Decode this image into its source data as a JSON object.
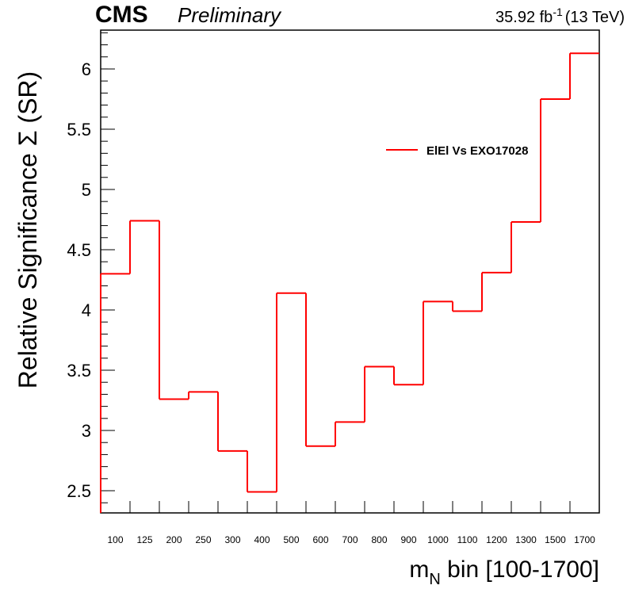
{
  "chart_data": {
    "type": "step",
    "experiment": "CMS",
    "status": "Preliminary",
    "lumi": "35.92 fb",
    "lumi_exponent": "-1",
    "energy": "(13 TeV)",
    "y_label": "Relative Significance  Σ (SR)",
    "x_label": "m",
    "x_label_subscript": "N",
    "x_label_rest": " bin [100-1700]",
    "categories": [
      "100",
      "125",
      "200",
      "250",
      "300",
      "400",
      "500",
      "600",
      "700",
      "800",
      "900",
      "1000",
      "1100",
      "1200",
      "1300",
      "1500",
      "1700"
    ],
    "series": [
      {
        "name": "ElEl Vs EXO17028",
        "color": "#ff0000",
        "values": [
          4.3,
          4.74,
          3.26,
          3.32,
          2.83,
          2.49,
          4.14,
          2.87,
          3.07,
          3.53,
          3.38,
          4.07,
          3.99,
          4.31,
          4.73,
          5.75,
          6.13
        ]
      }
    ],
    "ylim": [
      2.316,
      6.322
    ],
    "yticks": [
      2.5,
      3,
      3.5,
      4,
      4.5,
      5,
      5.5,
      6
    ]
  }
}
